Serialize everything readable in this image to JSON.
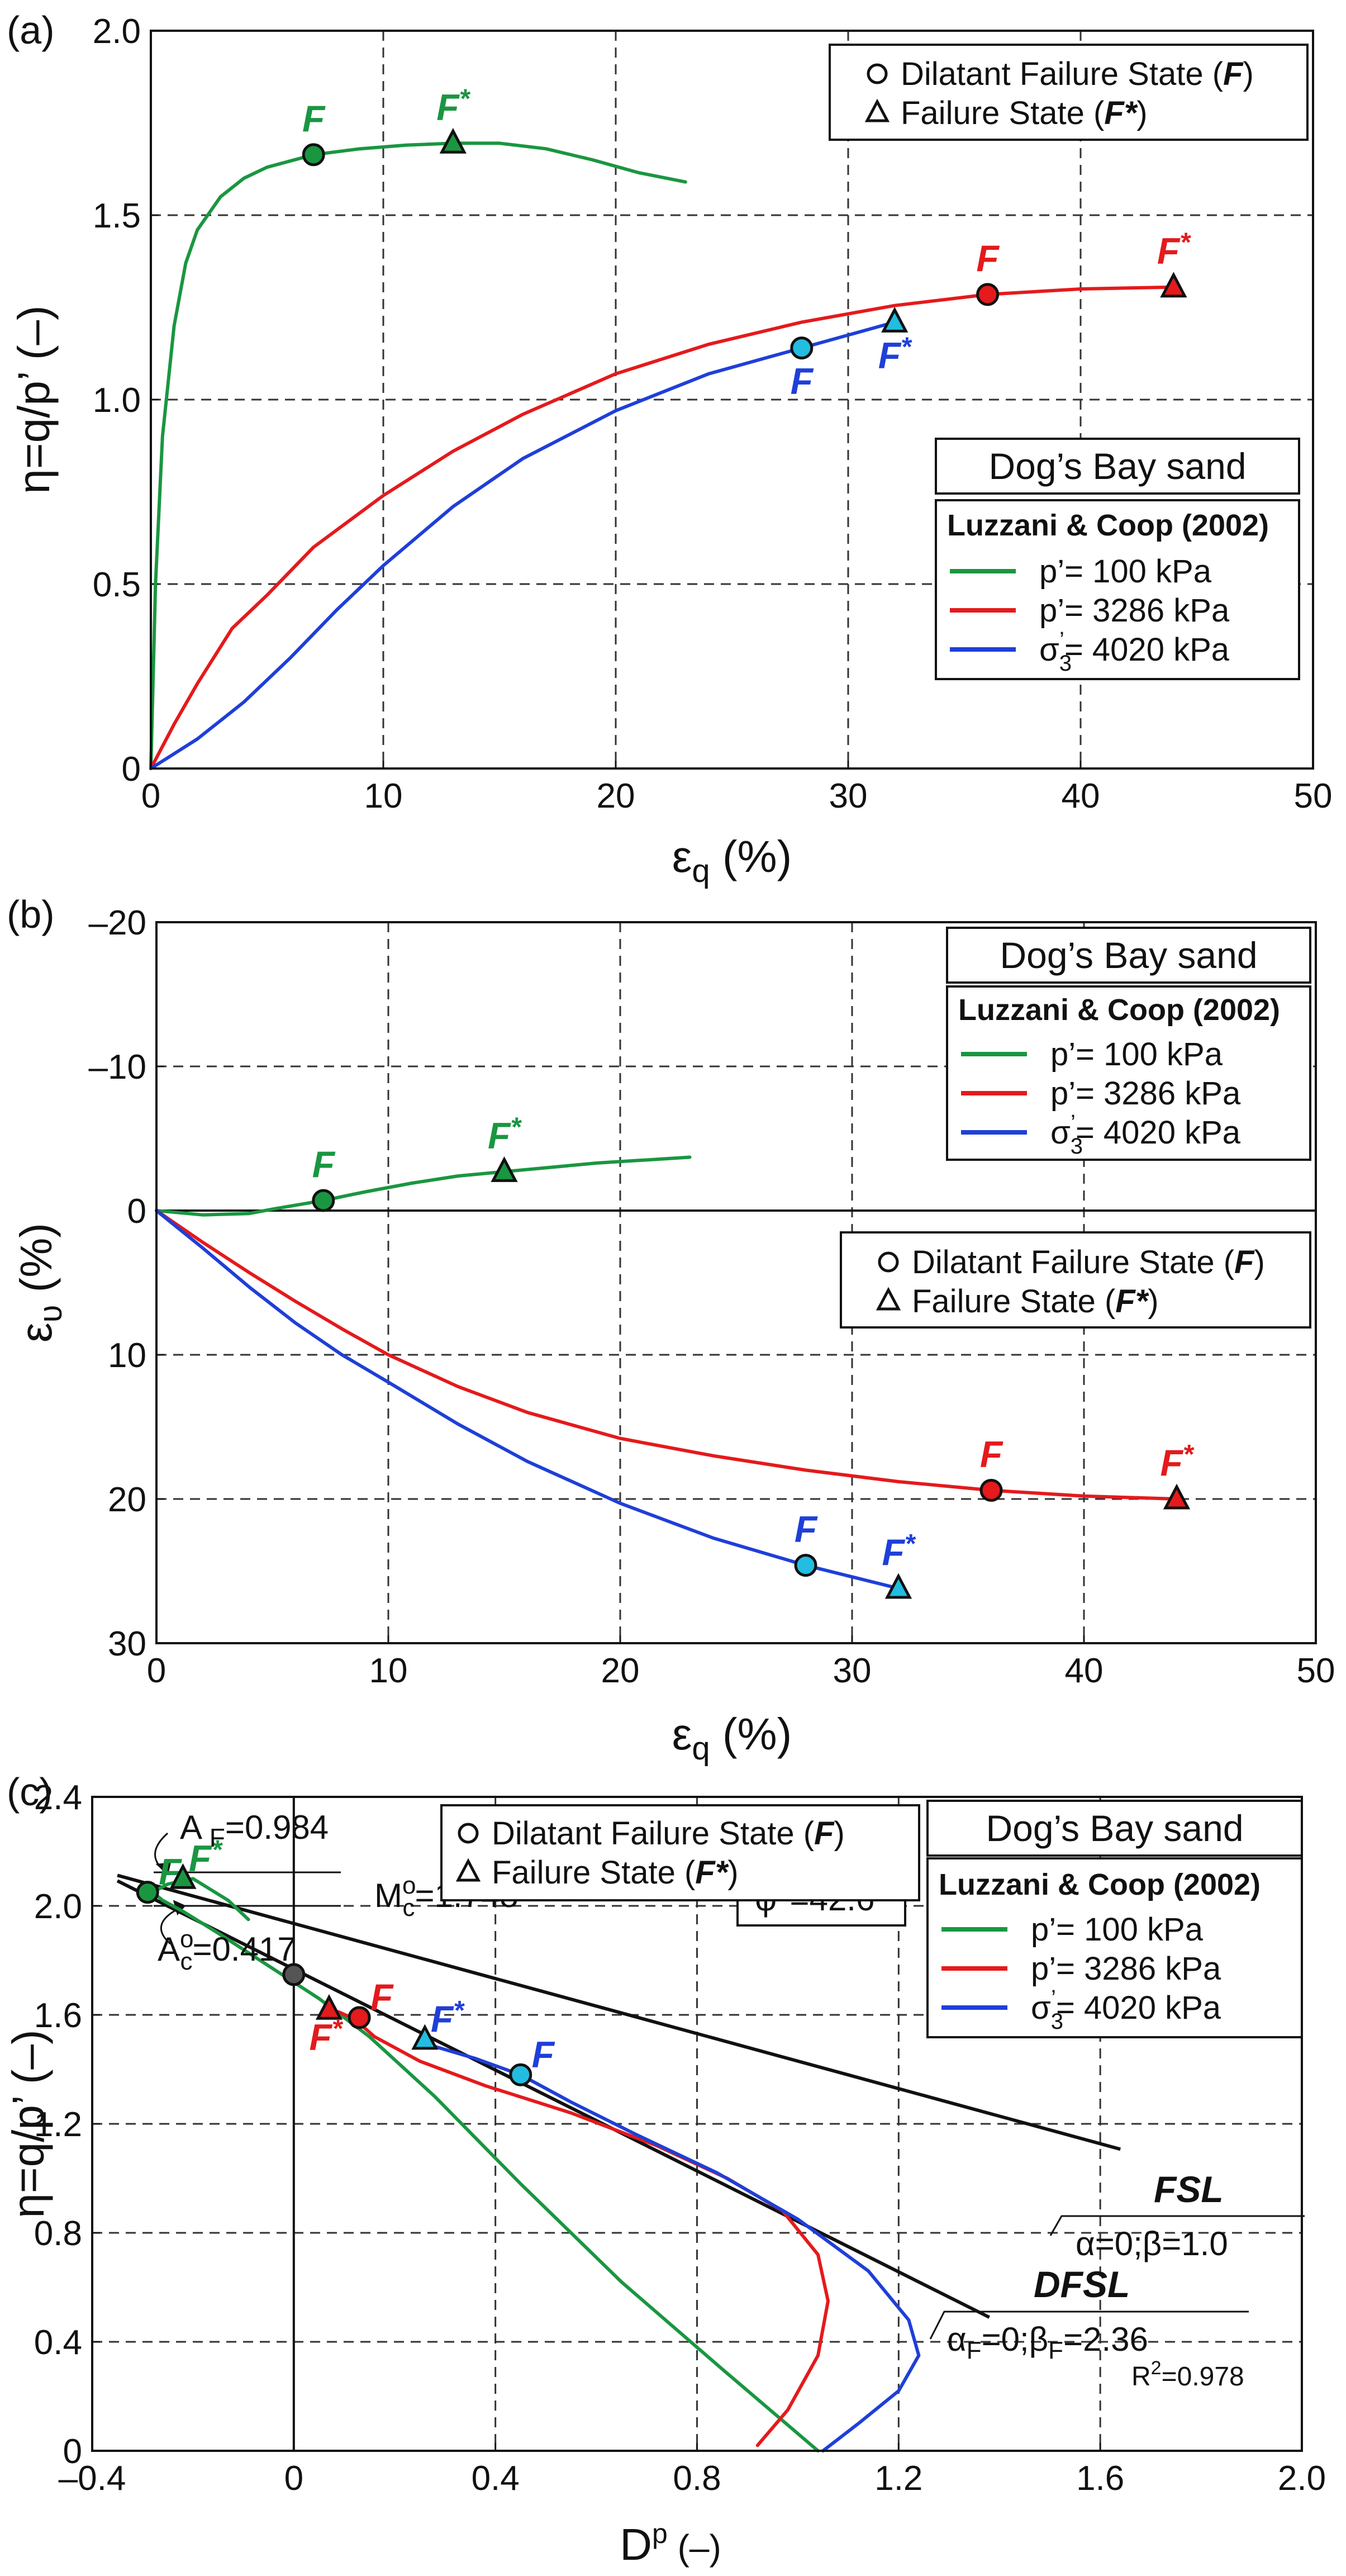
{
  "chart_data": [
    {
      "panel": "(a)",
      "type": "line",
      "xlabel": "εq (%)",
      "ylabel": "η=q/p’ (–)",
      "xlim": [
        0,
        50
      ],
      "ylim": [
        0,
        2.0
      ],
      "xticks": [
        "0",
        "10",
        "20",
        "30",
        "40",
        "50"
      ],
      "yticks": [
        "0",
        "0.5",
        "1.0",
        "1.5",
        "2.0"
      ],
      "xtick_values": [
        0,
        10,
        20,
        30,
        40,
        50
      ],
      "ytick_values": [
        0,
        0.5,
        1.0,
        1.5,
        2.0
      ],
      "grid": true,
      "box_title": "Dog’s Bay sand",
      "legend_header": "Luzzani & Coop (2002)",
      "marker_legend": [
        {
          "symbol": "circle",
          "label": "Dilatant Failure State (F)"
        },
        {
          "symbol": "triangle",
          "label": "Failure State (F*)"
        }
      ],
      "series": [
        {
          "name": "p’= 100 kPa",
          "color": "#1a9641",
          "x": [
            0,
            0.2,
            0.5,
            1,
            1.5,
            2,
            3,
            4,
            5,
            7,
            9,
            11,
            13,
            15,
            17,
            19,
            21,
            23
          ],
          "y": [
            0,
            0.5,
            0.9,
            1.2,
            1.37,
            1.46,
            1.55,
            1.6,
            1.63,
            1.664,
            1.68,
            1.69,
            1.695,
            1.695,
            1.68,
            1.65,
            1.615,
            1.59
          ]
        },
        {
          "name": "p’= 3286 kPa",
          "color": "#e41a1c",
          "x": [
            0,
            1,
            2,
            3.5,
            5,
            7,
            10,
            13,
            16,
            20,
            24,
            28,
            32,
            36,
            40,
            44
          ],
          "y": [
            0,
            0.12,
            0.23,
            0.38,
            0.47,
            0.6,
            0.74,
            0.86,
            0.96,
            1.07,
            1.15,
            1.21,
            1.255,
            1.285,
            1.3,
            1.305
          ]
        },
        {
          "name": "σ3’= 4020 kPa",
          "color": "#1f3fd8",
          "x": [
            0,
            2,
            4,
            6,
            8,
            10,
            13,
            16,
            20,
            24,
            28,
            32
          ],
          "y": [
            0,
            0.08,
            0.18,
            0.3,
            0.43,
            0.55,
            0.71,
            0.84,
            0.97,
            1.07,
            1.14,
            1.21
          ]
        }
      ],
      "markers": [
        {
          "shape": "circle",
          "label": "F",
          "x": 7,
          "y": 1.664,
          "fill": "#1a9641",
          "text_color": "#1a9641"
        },
        {
          "shape": "triangle",
          "label": "F*",
          "x": 13,
          "y": 1.695,
          "fill": "#1a9641",
          "text_color": "#1a9641"
        },
        {
          "shape": "circle",
          "label": "F",
          "x": 36,
          "y": 1.285,
          "fill": "#e41a1c",
          "text_color": "#e41a1c"
        },
        {
          "shape": "triangle",
          "label": "F*",
          "x": 44,
          "y": 1.305,
          "fill": "#e41a1c",
          "text_color": "#e41a1c"
        },
        {
          "shape": "circle",
          "label": "F",
          "x": 28,
          "y": 1.14,
          "fill": "#22bde0",
          "text_color": "#1f3fd8"
        },
        {
          "shape": "triangle",
          "label": "F*",
          "x": 32,
          "y": 1.21,
          "fill": "#22bde0",
          "text_color": "#1f3fd8"
        }
      ]
    },
    {
      "panel": "(b)",
      "type": "line",
      "xlabel": "εq (%)",
      "ylabel": "εv (%)",
      "xlim": [
        0,
        50
      ],
      "ylim": [
        -20,
        30
      ],
      "y_inverted": true,
      "xticks": [
        "0",
        "10",
        "20",
        "30",
        "40",
        "50"
      ],
      "yticks": [
        "–20",
        "–10",
        "0",
        "10",
        "20",
        "30"
      ],
      "xtick_values": [
        0,
        10,
        20,
        30,
        40,
        50
      ],
      "ytick_values": [
        -20,
        -10,
        0,
        10,
        20,
        30
      ],
      "grid": true,
      "box_title": "Dog’s Bay sand",
      "legend_header": "Luzzani & Coop (2002)",
      "marker_legend": [
        {
          "symbol": "circle",
          "label": "Dilatant Failure State (F)"
        },
        {
          "symbol": "triangle",
          "label": "Failure State (F*)"
        }
      ],
      "series": [
        {
          "name": "p’= 100 kPa",
          "color": "#1a9641",
          "x": [
            0,
            2,
            4,
            5,
            7.2,
            9,
            11,
            13,
            15,
            17,
            19,
            21,
            23
          ],
          "y": [
            0,
            0.3,
            0.2,
            -0.1,
            -0.7,
            -1.3,
            -1.9,
            -2.4,
            -2.7,
            -3.0,
            -3.3,
            -3.5,
            -3.7
          ]
        },
        {
          "name": "p’= 3286 kPa",
          "color": "#e41a1c",
          "x": [
            0,
            2,
            4,
            6,
            8,
            10,
            13,
            16,
            20,
            24,
            28,
            32,
            36,
            40,
            44
          ],
          "y": [
            0,
            2.2,
            4.3,
            6.3,
            8.2,
            10.0,
            12.2,
            14.0,
            15.8,
            17.0,
            18.0,
            18.8,
            19.4,
            19.8,
            20.0
          ]
        },
        {
          "name": "σ3’= 4020 kPa",
          "color": "#1f3fd8",
          "x": [
            0,
            2,
            4,
            6,
            8,
            10,
            13,
            16,
            20,
            24,
            28,
            30,
            32
          ],
          "y": [
            0,
            2.6,
            5.3,
            7.8,
            10.0,
            11.9,
            14.8,
            17.4,
            20.3,
            22.7,
            24.6,
            25.4,
            26.2
          ]
        }
      ],
      "markers": [
        {
          "shape": "circle",
          "label": "F",
          "x": 7.2,
          "y": -0.7,
          "fill": "#1a9641",
          "text_color": "#1a9641"
        },
        {
          "shape": "triangle",
          "label": "F*",
          "x": 15,
          "y": -2.7,
          "fill": "#1a9641",
          "text_color": "#1a9641"
        },
        {
          "shape": "circle",
          "label": "F",
          "x": 36,
          "y": 19.4,
          "fill": "#e41a1c",
          "text_color": "#e41a1c"
        },
        {
          "shape": "triangle",
          "label": "F*",
          "x": 44,
          "y": 20.0,
          "fill": "#e41a1c",
          "text_color": "#e41a1c"
        },
        {
          "shape": "circle",
          "label": "F",
          "x": 28,
          "y": 24.6,
          "fill": "#22bde0",
          "text_color": "#1f3fd8"
        },
        {
          "shape": "triangle",
          "label": "F*",
          "x": 32,
          "y": 26.2,
          "fill": "#22bde0",
          "text_color": "#1f3fd8"
        }
      ]
    },
    {
      "panel": "(c)",
      "type": "line",
      "xlabel": "Dp (–)",
      "ylabel": "η=q/p’ (–)",
      "xlim": [
        -0.4,
        2.0
      ],
      "ylim": [
        0,
        2.4
      ],
      "xticks": [
        "–0.4",
        "0",
        "0.4",
        "0.8",
        "1.2",
        "1.6",
        "2.0"
      ],
      "yticks": [
        "0",
        "0.4",
        "0.8",
        "1.2",
        "1.6",
        "2.0",
        "2.4"
      ],
      "xtick_values": [
        -0.4,
        0,
        0.4,
        0.8,
        1.2,
        1.6,
        2.0
      ],
      "ytick_values": [
        0,
        0.4,
        0.8,
        1.2,
        1.6,
        2.0,
        2.4
      ],
      "grid": true,
      "box_title": "Dog’s Bay sand",
      "legend_header": "Luzzani & Coop (2002)",
      "marker_legend": [
        {
          "symbol": "circle",
          "label": "Dilatant Failure State (F)"
        },
        {
          "symbol": "triangle",
          "label": "Failure State (F*)"
        }
      ],
      "series": [
        {
          "name": "p’= 100 kPa",
          "color": "#1a9641",
          "x": [
            1.04,
            0.85,
            0.65,
            0.45,
            0.28,
            0.15,
            0.05,
            -0.05,
            -0.15,
            -0.22,
            -0.26,
            -0.28,
            -0.25,
            -0.2,
            -0.13,
            -0.09
          ],
          "y": [
            0,
            0.3,
            0.62,
            0.98,
            1.3,
            1.52,
            1.66,
            1.78,
            1.9,
            1.98,
            2.02,
            2.05,
            2.08,
            2.1,
            2.02,
            1.95
          ]
        },
        {
          "name": "p’= 3286 kPa",
          "color": "#e41a1c",
          "x": [
            0.92,
            0.98,
            1.04,
            1.06,
            1.04,
            0.97,
            0.86,
            0.72,
            0.55,
            0.38,
            0.25,
            0.16,
            0.12,
            0.09,
            0.07
          ],
          "y": [
            0.02,
            0.15,
            0.35,
            0.55,
            0.72,
            0.88,
            1.0,
            1.12,
            1.24,
            1.34,
            1.43,
            1.52,
            1.585,
            1.61,
            1.62
          ]
        },
        {
          "name": "σ3’= 4020 kPa",
          "color": "#1f3fd8",
          "x": [
            1.05,
            1.12,
            1.2,
            1.24,
            1.22,
            1.14,
            1.0,
            0.84,
            0.68,
            0.55,
            0.45,
            0.36,
            0.25
          ],
          "y": [
            0,
            0.1,
            0.22,
            0.35,
            0.48,
            0.66,
            0.85,
            1.02,
            1.16,
            1.28,
            1.38,
            1.44,
            1.5
          ]
        }
      ],
      "lines": [
        {
          "name": "FSL",
          "color": "#111111",
          "x": [
            -0.35,
            1.64
          ],
          "y": [
            2.112,
            1.107
          ]
        },
        {
          "name": "DFSL",
          "color": "#111111",
          "x": [
            -0.35,
            1.38
          ],
          "y": [
            2.092,
            0.49
          ]
        }
      ],
      "markers": [
        {
          "shape": "circle",
          "label": "F",
          "x": -0.29,
          "y": 2.05,
          "fill": "#1a9641",
          "text_color": "#1a9641"
        },
        {
          "shape": "triangle",
          "label": "F*",
          "x": -0.22,
          "y": 2.1,
          "fill": "#1a9641",
          "text_color": "#1a9641"
        },
        {
          "shape": "circle",
          "label": "F",
          "x": 0.13,
          "y": 1.59,
          "fill": "#e41a1c",
          "text_color": "#e41a1c"
        },
        {
          "shape": "triangle",
          "label": "F*",
          "x": 0.07,
          "y": 1.62,
          "fill": "#e41a1c",
          "text_color": "#e41a1c"
        },
        {
          "shape": "circle",
          "label": "F",
          "x": 0.45,
          "y": 1.38,
          "fill": "#22bde0",
          "text_color": "#1f3fd8"
        },
        {
          "shape": "triangle",
          "label": "F*",
          "x": 0.26,
          "y": 1.51,
          "fill": "#22bde0",
          "text_color": "#1f3fd8"
        },
        {
          "shape": "circle",
          "label": "",
          "x": 0,
          "y": 1.748,
          "fill": "#555555",
          "text_color": "#111111"
        }
      ],
      "annotations": {
        "af": "A F=0.984",
        "mc": "Mc°=1.748",
        "ac": "Ac°=0.417",
        "phi": "φ°=42.6°",
        "fsl_name": "FSL",
        "fsl_params": "α=0;β=1.0",
        "dfsl_name": "DFSL",
        "dfsl_params": "αF=0;βF=2.36",
        "r2": "R²=0.978"
      }
    }
  ]
}
